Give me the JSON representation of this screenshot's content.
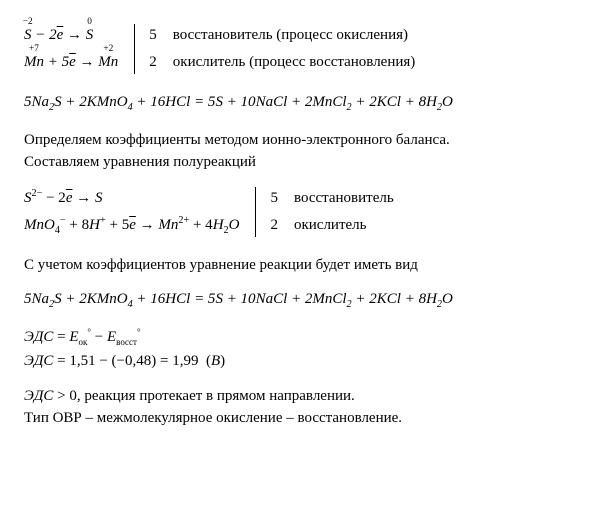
{
  "block1": {
    "left": {
      "line1": "<span class='it'><span class='ox'><span class='topnum'>−2</span>S</span> − 2<span class='ebar'>e</span> → <span class='ox'><span class='topnum'>0</span>S</span></span>",
      "line2": "<span class='it'><span class='ox'><span class='topnum'>+7</span>Mn</span> + 5<span class='ebar'>e</span> → <span class='ox'><span class='topnum'>+2</span>Mn</span></span>"
    },
    "coef": {
      "c1": "5",
      "c2": "2"
    },
    "desc": {
      "d1": "восстановитель (процесс окисления)",
      "d2": "окислитель (процесс восстановления)"
    }
  },
  "equation1": "5<span class='it'>Na</span><sub>2</sub><span class='it'>S</span> + 2<span class='it'>KMnO</span><sub>4</sub> + 16<span class='it'>HCl</span> = 5<span class='it'>S</span> + 10<span class='it'>NaCl</span> + 2<span class='it'>MnCl</span><sub>2</sub> + 2<span class='it'>KCl</span> + 8<span class='it'>H</span><sub>2</sub><span class='it'>O</span>",
  "para1": "Определяем коэффициенты методом ионно-электронного баланса.<br>Составляем уравнения полуреакций",
  "block2": {
    "left": {
      "line1": "<span class='it'>S</span><sup>2−</sup> − 2<span class='ebar'>e</span> → <span class='it'>S</span>",
      "line2": "<span class='it'>MnO</span><sub>4</sub><sup>−</sup> + 8<span class='it'>H</span><sup>+</sup> + 5<span class='ebar'>e</span> → <span class='it'>Mn</span><sup>2+</sup> + 4<span class='it'>H</span><sub>2</sub><span class='it'>O</span>"
    },
    "coef": {
      "c1": "5",
      "c2": "2"
    },
    "desc": {
      "d1": "восстановитель",
      "d2": "окислитель"
    }
  },
  "para2": "С учетом коэффициентов уравнение реакции будет иметь вид",
  "equation2": "5<span class='it'>Na</span><sub>2</sub><span class='it'>S</span> + 2<span class='it'>KMnO</span><sub>4</sub> + 16<span class='it'>HCl</span> = 5<span class='it'>S</span> + 10<span class='it'>NaCl</span> + 2<span class='it'>MnCl</span><sub>2</sub> + 2<span class='it'>KCl</span> + 8<span class='it'>H</span><sub>2</sub><span class='it'>O</span>",
  "emf": {
    "line1": "<span class='it'>ЭДС</span> = <span class='it'>E</span><sub class='smallsup'>ок</sub><sup class='smallsup'>°</sup> − <span class='it'>E</span><sub class='smallsup'>восст</sub><sup class='smallsup'>°</sup>",
    "line2": "<span class='it'>ЭДС</span> = 1,51 − (−0,48) = 1,99&nbsp; (<span class='it'>В</span>)"
  },
  "para3": "<span class='it'>ЭДС</span> &gt; 0, реакция протекает в прямом направлении.<br>Тип ОВР – межмолекулярное окисление – восстановление."
}
